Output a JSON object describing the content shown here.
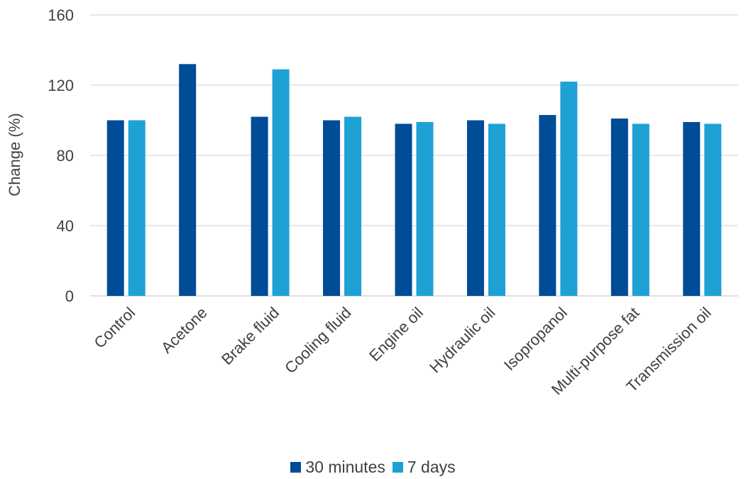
{
  "chart_data": {
    "type": "bar",
    "title": "",
    "xlabel": "",
    "ylabel": "Change (%)",
    "ylim": [
      0,
      160
    ],
    "yticks": [
      "0",
      "40",
      "80",
      "120",
      "160"
    ],
    "grid": true,
    "legend_position": "bottom",
    "categories": [
      "Control",
      "Acetone",
      "Brake fluid",
      "Cooling fluid",
      "Engine oil",
      "Hydraulic oil",
      "Isopropanol",
      "Multi-purpose fat",
      "Transmission oil"
    ],
    "series": [
      {
        "name": "30 minutes",
        "color": "#004C97",
        "values": [
          100,
          132,
          102,
          100,
          98,
          100,
          103,
          101,
          99
        ]
      },
      {
        "name": "7 days",
        "color": "#1EA1D5",
        "values": [
          100,
          null,
          129,
          102,
          99,
          98,
          122,
          98,
          98
        ]
      }
    ]
  }
}
